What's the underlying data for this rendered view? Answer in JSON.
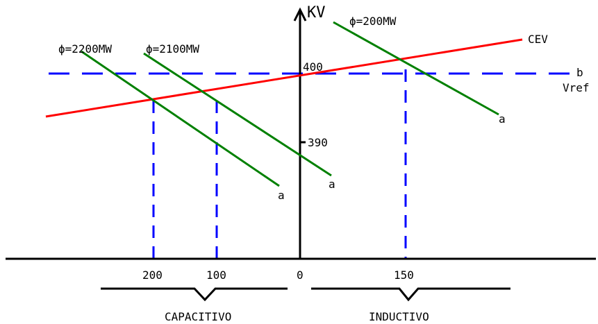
{
  "axis_labels": {
    "y_unit": "KV",
    "y_tick_400": "400",
    "y_tick_390": "390",
    "x_tick_200": "200",
    "x_tick_100": "100",
    "x_tick_0": "0",
    "x_tick_150": "150"
  },
  "lines": {
    "cev_label": "CEV",
    "vref_label": "Vref",
    "vref_end_label": "b"
  },
  "load_lines": [
    {
      "label": "ϕ=2200MW",
      "end_label": "a"
    },
    {
      "label": "ϕ=2100MW",
      "end_label": "a"
    },
    {
      "label": "ϕ=200MW",
      "end_label": "a"
    }
  ],
  "regions": {
    "capacitive": "CAPACITIVO",
    "inductive": "INDUCTIVO"
  },
  "colors": {
    "cev_line": "#ff0000",
    "load_line": "#008000",
    "dashed": "#0000ff",
    "axes": "#000000"
  }
}
